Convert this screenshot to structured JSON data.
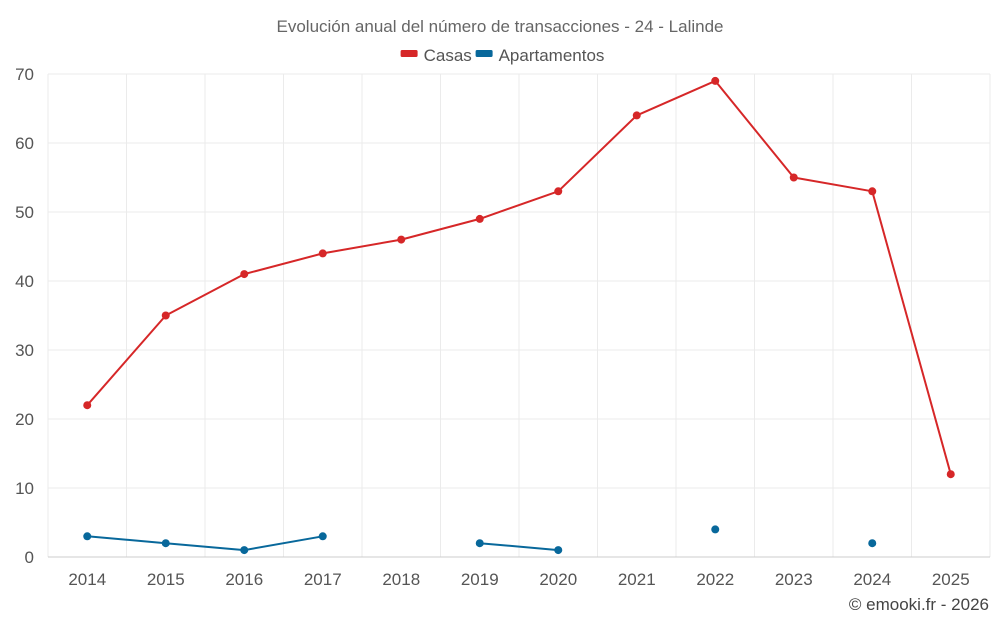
{
  "chart_data": {
    "type": "line",
    "title": "Evolución anual del número de transacciones - 24 - Lalinde",
    "categories": [
      "2014",
      "2015",
      "2016",
      "2017",
      "2018",
      "2019",
      "2020",
      "2021",
      "2022",
      "2023",
      "2024",
      "2025"
    ],
    "ylim": [
      0,
      70
    ],
    "yticks": [
      0,
      10,
      20,
      30,
      40,
      50,
      60,
      70
    ],
    "grid": true,
    "legend_position": "top-center",
    "series": [
      {
        "name": "Casas",
        "color": "#d62728",
        "values": [
          22,
          35,
          41,
          44,
          46,
          49,
          53,
          64,
          69,
          55,
          53,
          12
        ]
      },
      {
        "name": "Apartamentos",
        "color": "#08689b",
        "values": [
          3,
          2,
          1,
          3,
          null,
          2,
          1,
          null,
          4,
          null,
          2,
          null
        ]
      }
    ],
    "credit": "© emooki.fr - 2026"
  }
}
